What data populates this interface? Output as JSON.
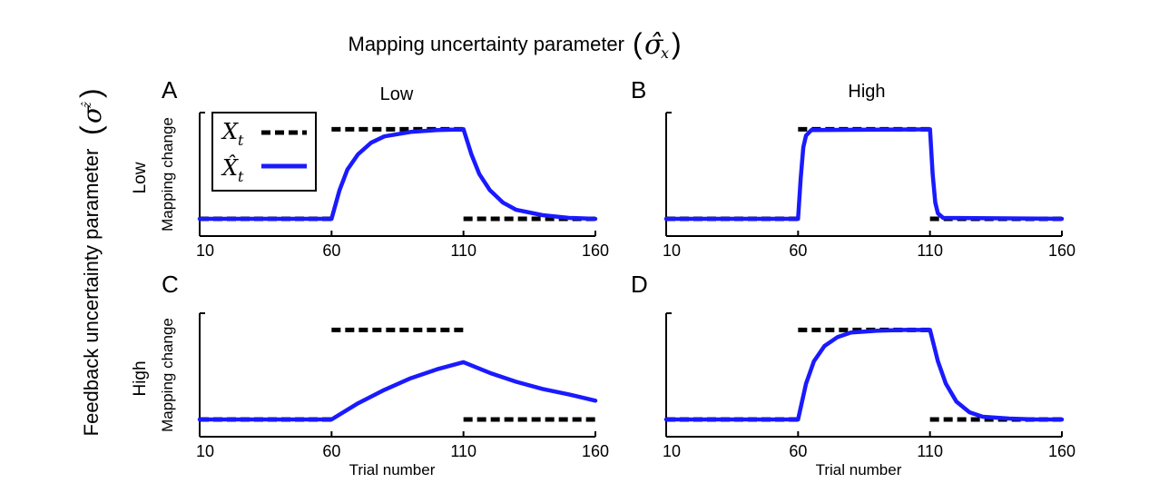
{
  "figure": {
    "super_title": "Mapping uncertainty parameter",
    "super_title_symbol": "σ̂",
    "super_title_subscript": "x",
    "side_title": "Feedback uncertainty parameter",
    "side_title_symbol": "σ",
    "side_title_subscript": "ẑ",
    "column_labels": [
      "Low",
      "High"
    ],
    "row_labels": [
      "Low",
      "High"
    ]
  },
  "legend": {
    "entries": [
      {
        "label": "X",
        "subscript": "t",
        "style": "dashed",
        "color": "#000000"
      },
      {
        "label": "X̂",
        "subscript": "t",
        "style": "solid",
        "color": "#1a1aff"
      }
    ]
  },
  "colors": {
    "true_mapping": "#000000",
    "estimate": "#1a1aff"
  },
  "chart_data": [
    {
      "type": "line",
      "panel": "A",
      "mapping_uncertainty": "Low",
      "feedback_uncertainty": "Low",
      "ylabel": "Mapping change",
      "xlabel": "",
      "xlim": [
        10,
        160
      ],
      "ylim": [
        0,
        1
      ],
      "xticks": [
        10,
        60,
        110,
        160
      ],
      "series": [
        {
          "name": "X_t",
          "style": "dashed",
          "x": [
            10,
            60,
            60,
            110,
            110,
            160
          ],
          "y": [
            0,
            0,
            1,
            1,
            0,
            0
          ]
        },
        {
          "name": "X̂_t",
          "style": "solid",
          "x": [
            10,
            60,
            63,
            66,
            70,
            75,
            80,
            90,
            100,
            110,
            113,
            116,
            120,
            125,
            130,
            140,
            150,
            160
          ],
          "y": [
            0,
            0,
            0.32,
            0.55,
            0.72,
            0.85,
            0.92,
            0.97,
            0.99,
            1.0,
            0.72,
            0.5,
            0.32,
            0.18,
            0.1,
            0.04,
            0.01,
            0
          ]
        }
      ]
    },
    {
      "type": "line",
      "panel": "B",
      "mapping_uncertainty": "High",
      "feedback_uncertainty": "Low",
      "ylabel": "",
      "xlabel": "",
      "xlim": [
        10,
        160
      ],
      "ylim": [
        0,
        1
      ],
      "xticks": [
        10,
        60,
        110,
        160
      ],
      "series": [
        {
          "name": "X_t",
          "style": "dashed",
          "x": [
            10,
            60,
            60,
            110,
            110,
            160
          ],
          "y": [
            0,
            0,
            1,
            1,
            0,
            0
          ]
        },
        {
          "name": "X̂_t",
          "style": "solid",
          "x": [
            10,
            60,
            61,
            62,
            63,
            65,
            110,
            111,
            112,
            113,
            115,
            160
          ],
          "y": [
            0,
            0,
            0.45,
            0.8,
            0.93,
            0.99,
            1.0,
            0.5,
            0.18,
            0.06,
            0.01,
            0
          ]
        }
      ]
    },
    {
      "type": "line",
      "panel": "C",
      "mapping_uncertainty": "Low",
      "feedback_uncertainty": "High",
      "ylabel": "Mapping change",
      "xlabel": "Trial number",
      "xlim": [
        10,
        160
      ],
      "ylim": [
        0,
        1
      ],
      "xticks": [
        10,
        60,
        110,
        160
      ],
      "series": [
        {
          "name": "X_t",
          "style": "dashed",
          "x": [
            10,
            60,
            60,
            110,
            110,
            160
          ],
          "y": [
            0,
            0,
            1,
            1,
            0,
            0
          ]
        },
        {
          "name": "X̂_t",
          "style": "solid",
          "x": [
            10,
            60,
            70,
            80,
            90,
            100,
            110,
            120,
            130,
            140,
            150,
            160
          ],
          "y": [
            0,
            0,
            0.18,
            0.33,
            0.46,
            0.56,
            0.64,
            0.52,
            0.42,
            0.34,
            0.28,
            0.21
          ]
        }
      ]
    },
    {
      "type": "line",
      "panel": "D",
      "mapping_uncertainty": "High",
      "feedback_uncertainty": "High",
      "ylabel": "",
      "xlabel": "Trial number",
      "xlim": [
        10,
        160
      ],
      "ylim": [
        0,
        1
      ],
      "xticks": [
        10,
        60,
        110,
        160
      ],
      "series": [
        {
          "name": "X_t",
          "style": "dashed",
          "x": [
            10,
            60,
            60,
            110,
            110,
            160
          ],
          "y": [
            0,
            0,
            1,
            1,
            0,
            0
          ]
        },
        {
          "name": "X̂_t",
          "style": "solid",
          "x": [
            10,
            60,
            63,
            66,
            70,
            75,
            80,
            90,
            100,
            110,
            113,
            116,
            120,
            125,
            130,
            140,
            150,
            160
          ],
          "y": [
            0,
            0,
            0.4,
            0.65,
            0.82,
            0.92,
            0.97,
            0.99,
            1.0,
            1.0,
            0.65,
            0.4,
            0.2,
            0.08,
            0.03,
            0.01,
            0,
            0
          ]
        }
      ]
    }
  ]
}
